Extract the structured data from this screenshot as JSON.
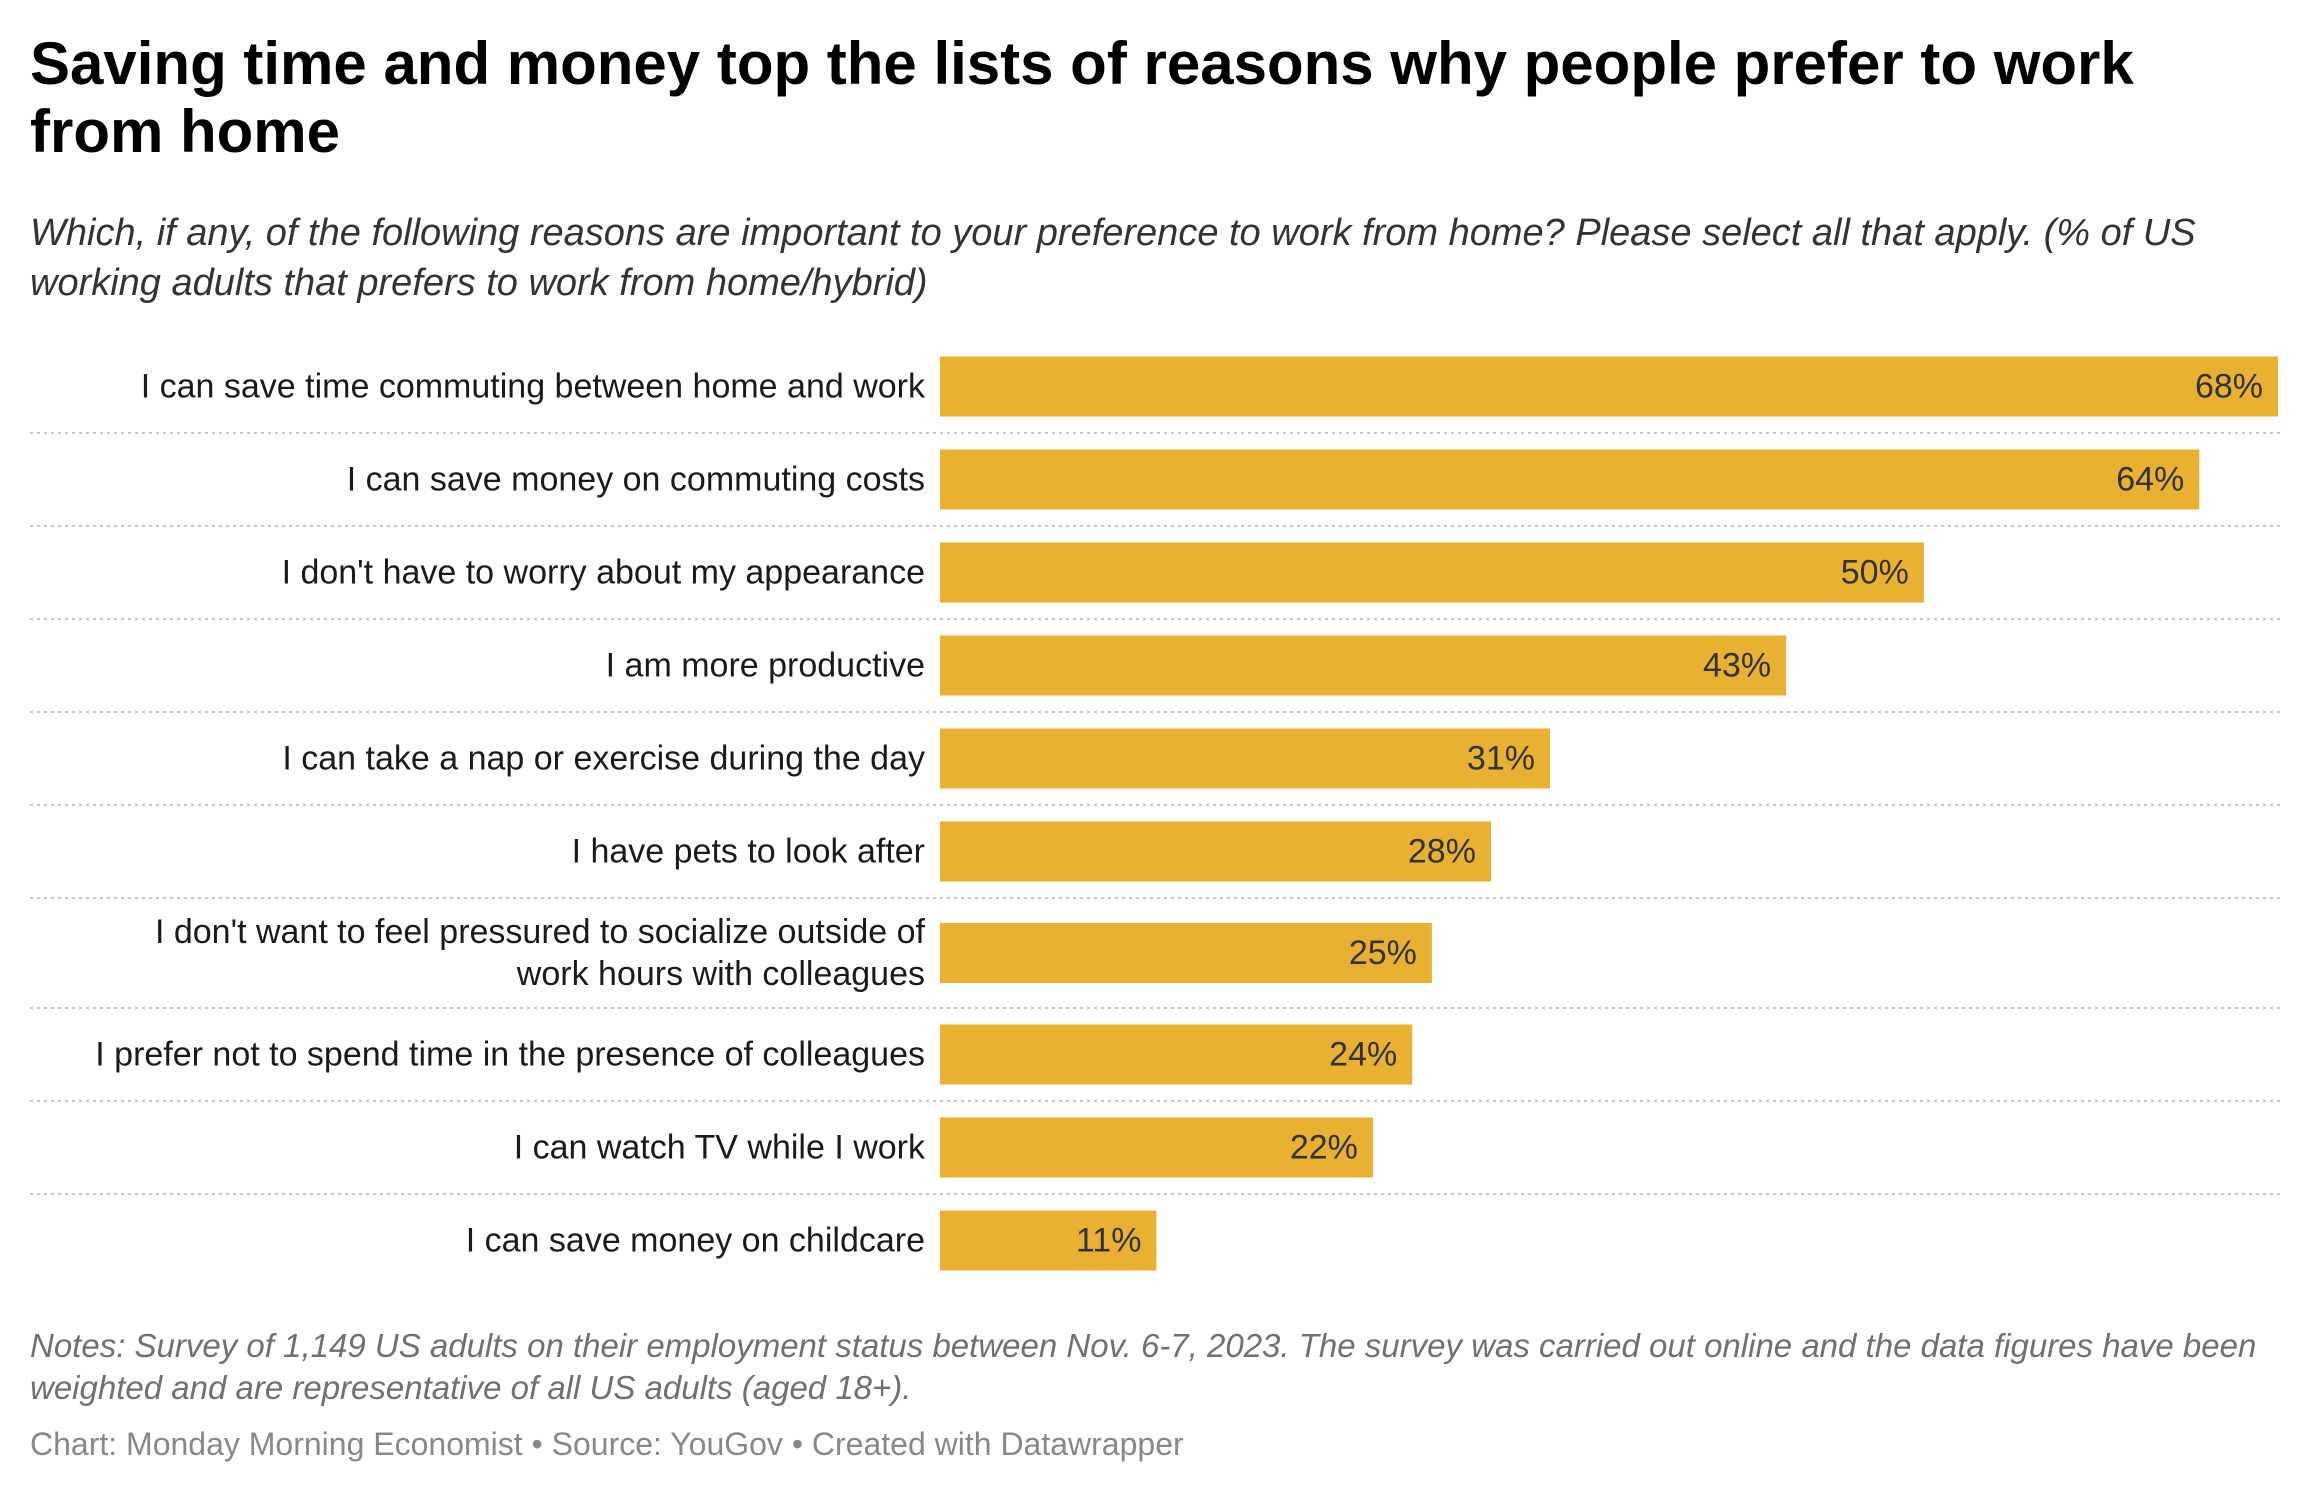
{
  "title": "Saving time and money top the lists of reasons why people prefer to work from home",
  "subtitle": "Which, if any, of the following reasons are important to your preference to work from home? Please select all that apply. (% of US working adults that prefers to work from home/hybrid)",
  "notes": "Notes: Survey of 1,149 US adults on their employment status between Nov. 6-7, 2023. The survey was carried out online and the data figures have been weighted and are representative of all US adults (aged 18+).",
  "footer": "Chart: Monday Morning Economist • Source: YouGov • Created with Datawrapper",
  "colors": {
    "bar": "#e8b132",
    "separator": "#c8c8c8",
    "label": "#1a1a1a",
    "value": "#333333"
  },
  "chart_data": {
    "type": "bar",
    "orientation": "horizontal",
    "unit": "%",
    "xlim": [
      0,
      68
    ],
    "grid": false,
    "categories": [
      [
        "I can save time commuting between home and work"
      ],
      [
        "I can save money on commuting costs"
      ],
      [
        "I don't have to worry about my appearance"
      ],
      [
        "I am more productive"
      ],
      [
        "I can take a nap or exercise during the day"
      ],
      [
        "I have pets to look after"
      ],
      [
        "I don't want to feel pressured to socialize outside of",
        "work hours with colleagues"
      ],
      [
        "I prefer not to spend time in the presence of colleagues"
      ],
      [
        "I can watch TV while I work"
      ],
      [
        "I can save money on childcare"
      ]
    ],
    "values": [
      68,
      64,
      50,
      43,
      31,
      28,
      25,
      24,
      22,
      11
    ],
    "value_labels": [
      "68%",
      "64%",
      "50%",
      "43%",
      "31%",
      "28%",
      "25%",
      "24%",
      "22%",
      "11%"
    ]
  }
}
